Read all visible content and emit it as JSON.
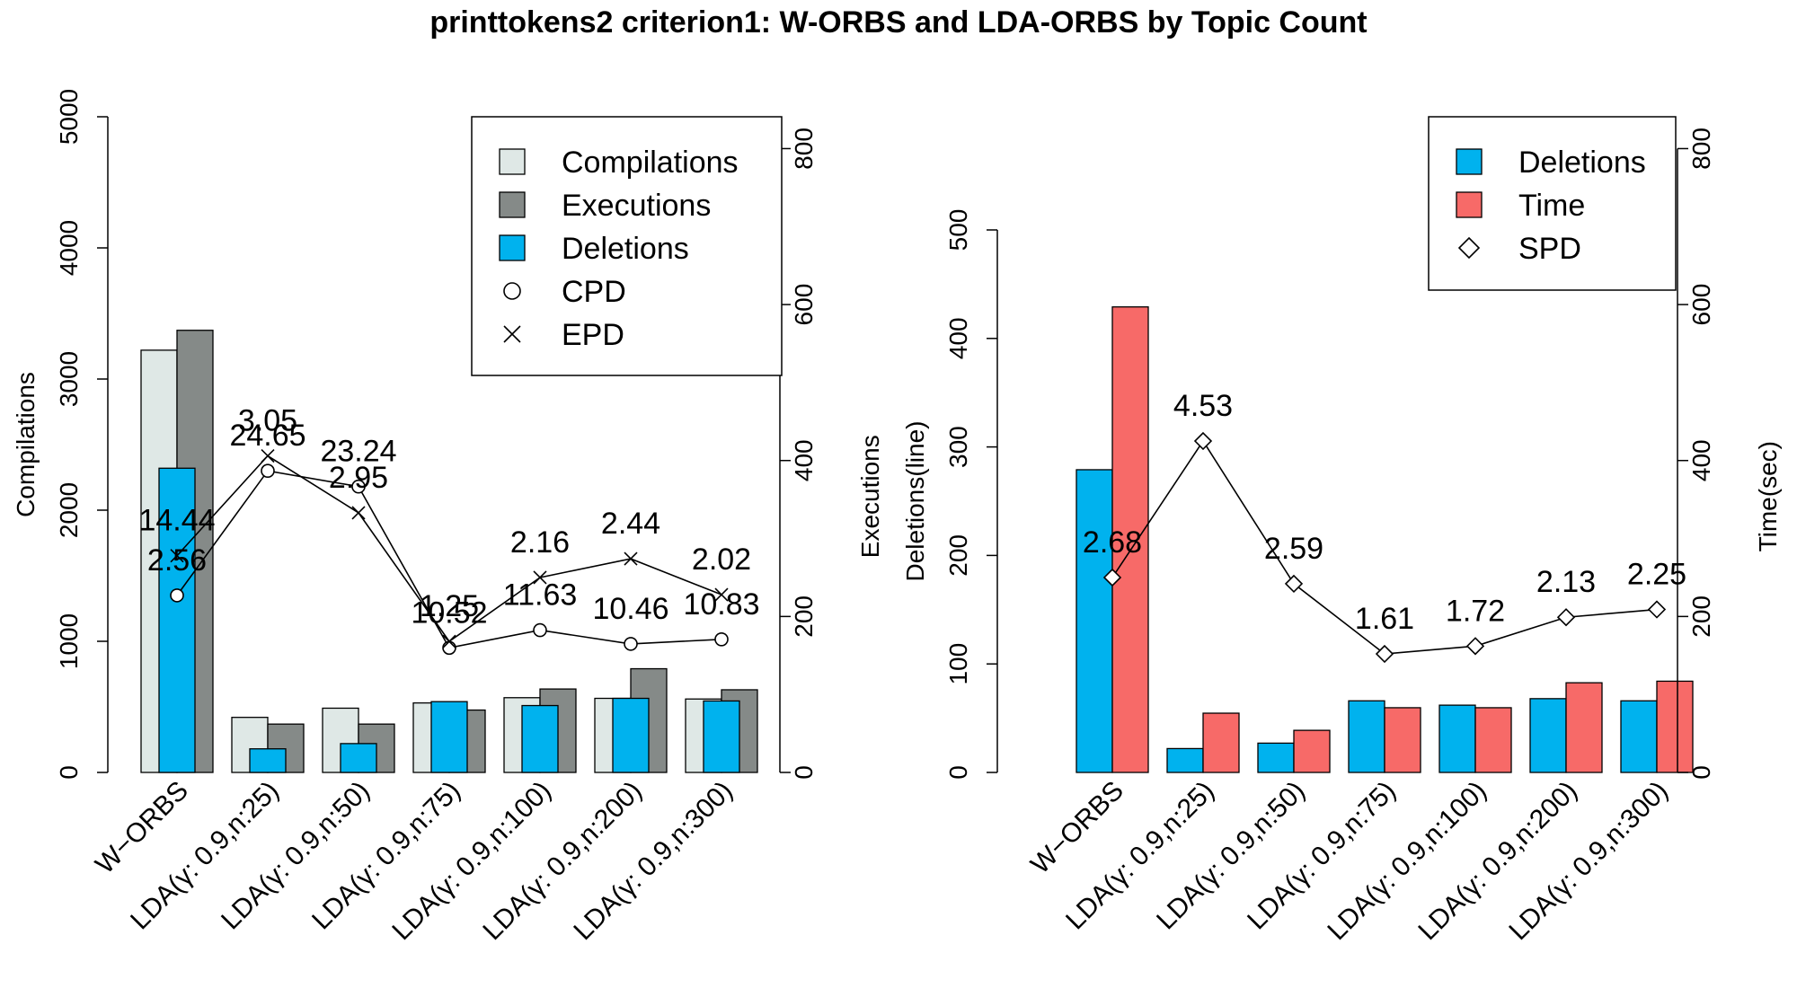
{
  "title": "printtokens2 criterion1: W-ORBS and LDA-ORBS by Topic Count",
  "categories": [
    "W−ORBS",
    "LDA(γ: 0.9,n:25)",
    "LDA(γ: 0.9,n:50)",
    "LDA(γ: 0.9,n:75)",
    "LDA(γ: 0.9,n:100)",
    "LDA(γ: 0.9,n:200)",
    "LDA(γ: 0.9,n:300)"
  ],
  "colors": {
    "compilations": "#dfe8e6",
    "executions": "#858a88",
    "deletions": "#00b2ee",
    "time": "#f76a68",
    "axis": "#000000"
  },
  "chart_data": [
    {
      "type": "bar",
      "name": "left",
      "categories": [
        "W−ORBS",
        "LDA(γ: 0.9,n:25)",
        "LDA(γ: 0.9,n:50)",
        "LDA(γ: 0.9,n:75)",
        "LDA(γ: 0.9,n:100)",
        "LDA(γ: 0.9,n:200)",
        "LDA(γ: 0.9,n:300)"
      ],
      "ylabel_left": "Compilations",
      "ylabel_right": "Executions",
      "ylim_left": [
        0,
        5000
      ],
      "yticks_left": [
        0,
        1000,
        2000,
        3000,
        4000,
        5000
      ],
      "ylim_right": [
        0,
        880
      ],
      "yticks_right": [
        0,
        200,
        400,
        600,
        800
      ],
      "legend_position": "top-right",
      "legend": [
        "Compilations",
        "Executions",
        "Deletions",
        "CPD",
        "EPD"
      ],
      "series": [
        {
          "name": "Compilations",
          "axis": "left",
          "values": [
            3220,
            420,
            490,
            530,
            570,
            565,
            560
          ]
        },
        {
          "name": "Executions",
          "axis": "right",
          "values": [
            567,
            62,
            62,
            80,
            107,
            133,
            106
          ]
        },
        {
          "name": "Deletions",
          "axis": "left",
          "values": [
            2320,
            180,
            220,
            540,
            510,
            565,
            545
          ]
        }
      ],
      "lines": [
        {
          "name": "CPD",
          "marker": "circle",
          "axis": "left",
          "y": [
            1350,
            2300,
            2180,
            950,
            1085,
            980,
            1015
          ],
          "labels": [
            "2.56",
            "24.65",
            "23.24",
            "10.52",
            "11.63",
            "10.46",
            "10.83"
          ]
        },
        {
          "name": "EPD",
          "marker": "x",
          "axis": "right",
          "y": [
            278,
            406,
            333,
            168,
            250,
            274,
            228
          ],
          "labels": [
            "14.44",
            "3.05",
            "2.95",
            "1.25",
            "2.16",
            "2.44",
            "2.02"
          ]
        }
      ]
    },
    {
      "type": "bar",
      "name": "right",
      "categories": [
        "W−ORBS",
        "LDA(γ: 0.9,n:25)",
        "LDA(γ: 0.9,n:50)",
        "LDA(γ: 0.9,n:75)",
        "LDA(γ: 0.9,n:100)",
        "LDA(γ: 0.9,n:200)",
        "LDA(γ: 0.9,n:300)"
      ],
      "ylabel_left": "Deletions(line)",
      "ylabel_right": "Time(sec)",
      "ylim_left": [
        0,
        500
      ],
      "yticks_left": [
        0,
        100,
        200,
        300,
        400,
        500
      ],
      "ylim_right": [
        0,
        880
      ],
      "yticks_right": [
        0,
        200,
        400,
        600,
        800
      ],
      "legend_position": "top-right",
      "legend": [
        "Deletions",
        "Time",
        "SPD"
      ],
      "series": [
        {
          "name": "Deletions",
          "axis": "left",
          "values": [
            279,
            22,
            27,
            66,
            62,
            68,
            66
          ]
        },
        {
          "name": "Time",
          "axis": "right",
          "values": [
            597,
            76,
            54,
            83,
            83,
            115,
            117
          ]
        }
      ],
      "lines": [
        {
          "name": "SPD",
          "marker": "diamond",
          "axis": "right",
          "y": [
            250,
            425,
            242,
            152,
            162,
            199,
            209
          ],
          "labels": [
            "2.68",
            "4.53",
            "2.59",
            "1.61",
            "1.72",
            "2.13",
            "2.25"
          ]
        }
      ]
    }
  ]
}
